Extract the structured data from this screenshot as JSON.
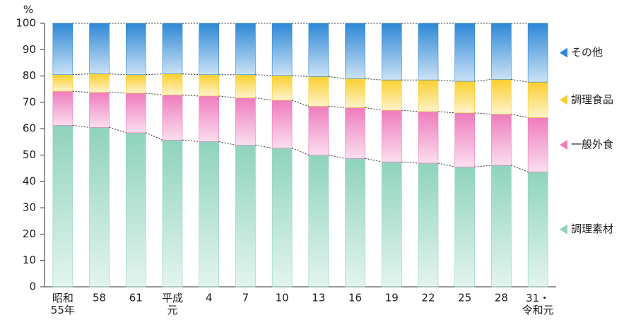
{
  "chart_data": {
    "type": "stacked_bar",
    "y_label": "%",
    "categories": [
      "昭和\n55年",
      "58",
      "61",
      "平成\n元",
      "4",
      "7",
      "10",
      "13",
      "16",
      "19",
      "22",
      "25",
      "28",
      "31・\n令和元"
    ],
    "series": [
      {
        "name": "調理素材",
        "color": "#8fd3bd",
        "values": [
          61.3,
          60.5,
          58.5,
          55.7,
          55.1,
          53.8,
          52.6,
          50.0,
          48.7,
          47.4,
          46.9,
          45.5,
          46.1,
          43.6
        ]
      },
      {
        "name": "一般外食",
        "color": "#ee7cbd",
        "values": [
          12.9,
          13.3,
          15.0,
          17.1,
          17.3,
          17.9,
          18.2,
          18.5,
          19.3,
          19.6,
          19.6,
          20.5,
          19.4,
          20.6
        ]
      },
      {
        "name": "調理食品",
        "color": "#fbcf2e",
        "values": [
          6.3,
          7.0,
          7.0,
          8.0,
          8.1,
          8.8,
          9.4,
          11.3,
          11.0,
          11.5,
          12.0,
          12.0,
          13.2,
          13.5
        ]
      },
      {
        "name": "その他",
        "color": "#2e88d6",
        "values": [
          19.5,
          19.2,
          19.5,
          19.2,
          19.5,
          19.5,
          19.8,
          20.2,
          21.0,
          21.5,
          21.5,
          22.0,
          21.3,
          22.3
        ]
      }
    ],
    "ylim": [
      0,
      100
    ],
    "yticks": [
      0,
      10,
      20,
      30,
      40,
      50,
      60,
      70,
      80,
      90,
      100
    ],
    "legend": "right"
  }
}
